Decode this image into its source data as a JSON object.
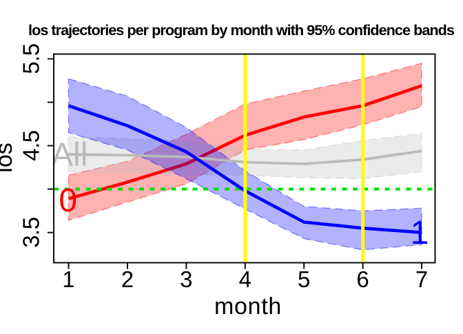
{
  "chart_data": {
    "type": "line",
    "title": "los trajectories per program by month with 95% confidence bands",
    "xlabel": "month",
    "ylabel": "los",
    "x": [
      1,
      2,
      3,
      4,
      5,
      6,
      7
    ],
    "xlim": [
      0.748,
      7.228
    ],
    "ylim": [
      3.152,
      5.555
    ],
    "x_ticks": {
      "values": [
        1,
        2,
        3,
        4,
        5,
        6,
        7
      ],
      "labels": [
        "1",
        "2",
        "3",
        "4",
        "5",
        "6",
        "7"
      ]
    },
    "y_ticks": {
      "values": [
        3.5,
        4.0,
        4.5,
        5.0,
        5.5
      ],
      "labels": [
        "3.5",
        "",
        "4.5",
        "",
        "5.5"
      ]
    },
    "grid": false,
    "legend": "none",
    "series": [
      {
        "name": "program-0",
        "color": "#ff0000",
        "band_alpha": 0.3,
        "values": [
          3.89,
          4.08,
          4.29,
          4.62,
          4.83,
          4.96,
          5.19
        ],
        "lower": [
          3.64,
          3.85,
          4.06,
          4.45,
          4.57,
          4.74,
          4.95
        ],
        "upper": [
          4.16,
          4.32,
          4.63,
          4.98,
          5.13,
          5.27,
          5.45
        ]
      },
      {
        "name": "all-programs",
        "color": "#bababa",
        "band_color": "#bebebe",
        "band_alpha": 0.3,
        "values": [
          4.4,
          4.39,
          4.37,
          4.31,
          4.29,
          4.34,
          4.44
        ],
        "lower": [
          4.2,
          4.19,
          4.17,
          4.16,
          4.13,
          4.12,
          4.2
        ],
        "upper": [
          4.6,
          4.58,
          4.55,
          4.46,
          4.45,
          4.56,
          4.64
        ]
      },
      {
        "name": "program-1",
        "color": "#0000ff",
        "band_alpha": 0.3,
        "values": [
          4.96,
          4.73,
          4.43,
          3.98,
          3.62,
          3.55,
          3.5
        ],
        "lower": [
          4.65,
          4.45,
          4.12,
          3.77,
          3.43,
          3.3,
          3.36
        ],
        "upper": [
          5.27,
          5.07,
          4.71,
          4.21,
          3.8,
          3.75,
          3.78
        ]
      }
    ],
    "ref_lines": [
      {
        "name": "mean-los-hline",
        "type": "h",
        "at": 4.0,
        "color": "#00e000",
        "dash": "dotted"
      },
      {
        "name": "month-4-vline",
        "type": "v",
        "at": 4,
        "color": "#ffff00",
        "dash": "solid"
      },
      {
        "name": "month-6-vline",
        "type": "v",
        "at": 6,
        "color": "#ffff00",
        "dash": "solid"
      }
    ],
    "annotations": [
      {
        "name": "label-program-0",
        "text": "0",
        "x": 0.99,
        "y": 3.877,
        "color": "#ff0000"
      },
      {
        "name": "label-program-1",
        "text": "1",
        "x": 6.965,
        "y": 3.505,
        "color": "#0000ff"
      },
      {
        "name": "label-all",
        "text": "All",
        "x": 1.015,
        "y": 4.405,
        "color": "#bababa"
      }
    ]
  }
}
